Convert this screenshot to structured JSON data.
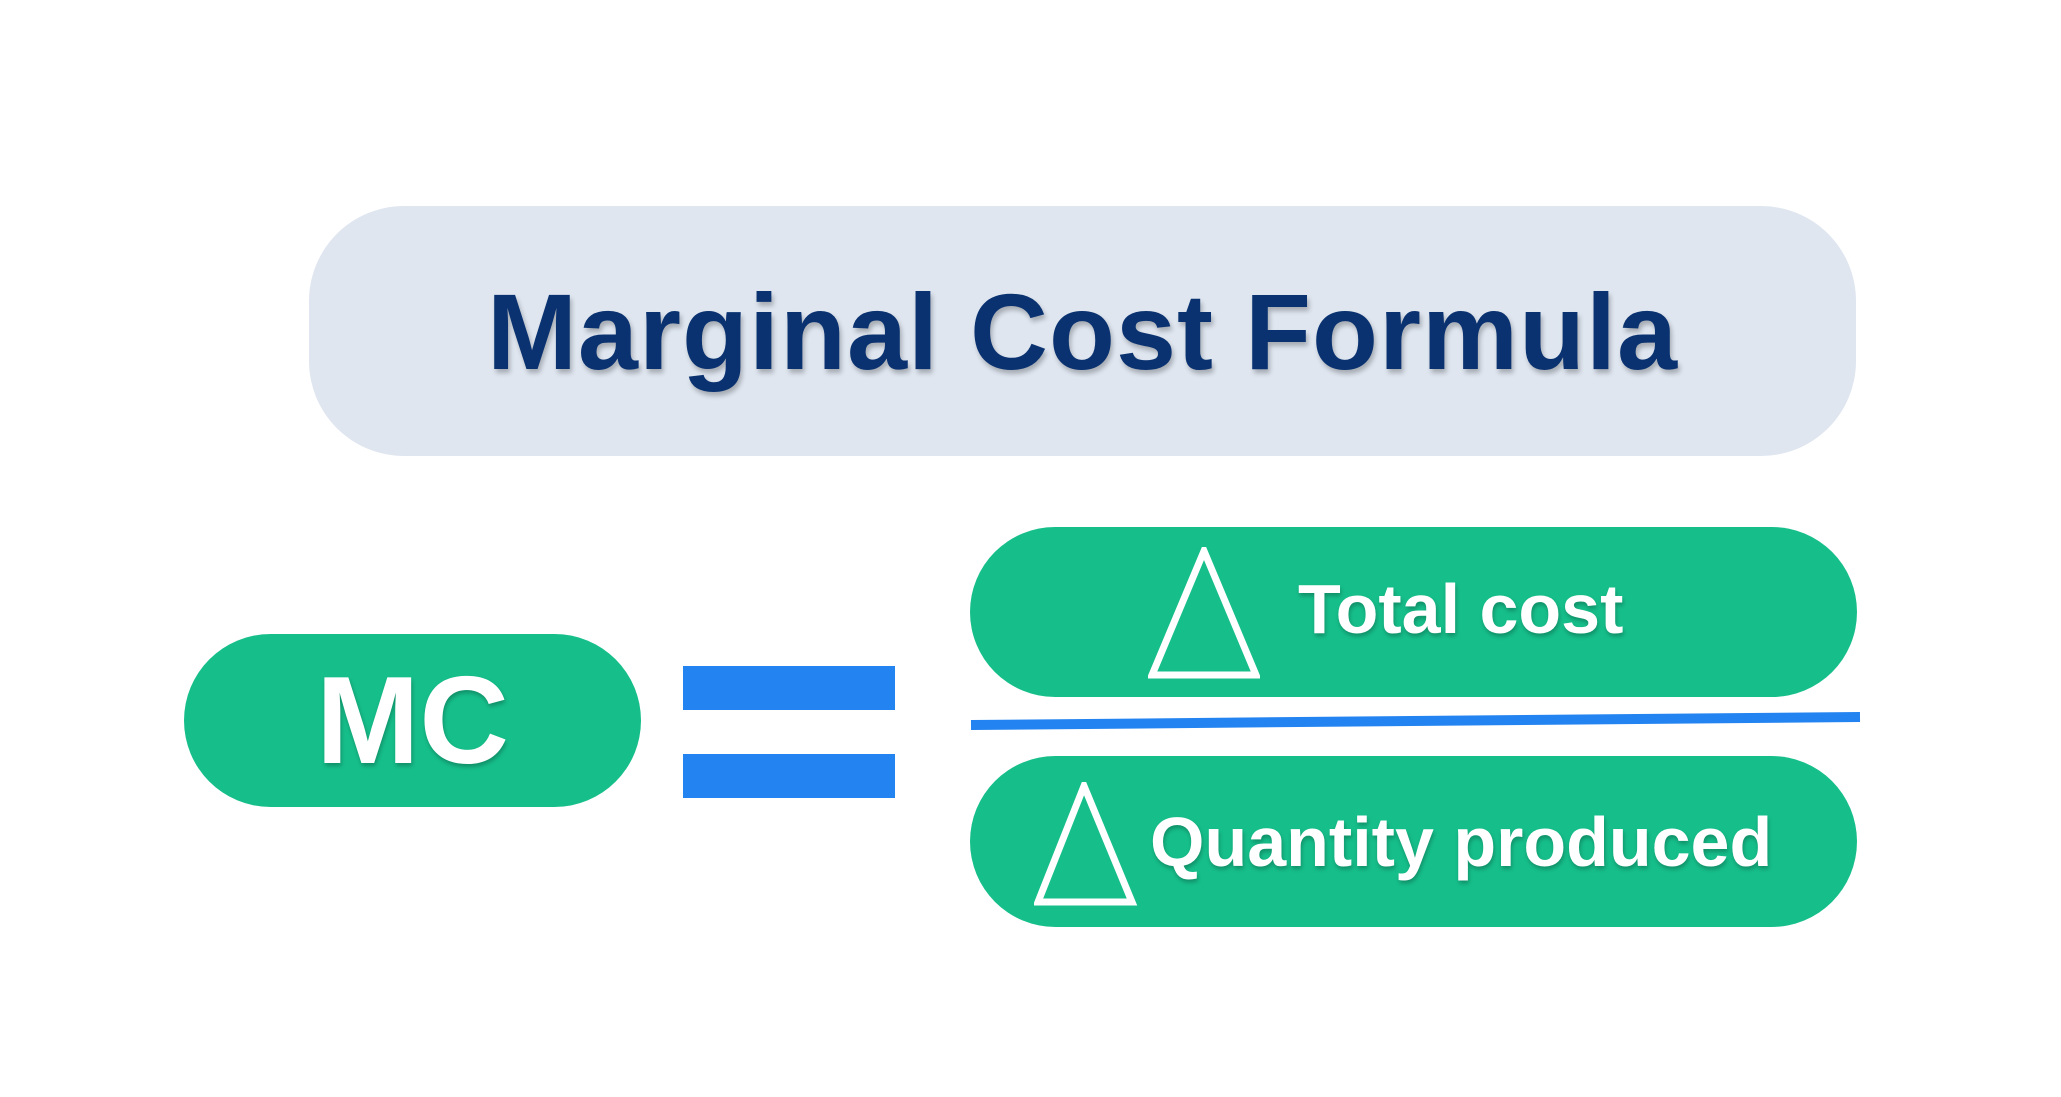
{
  "title": "Marginal Cost Formula",
  "lhs": "MC",
  "numerator": {
    "symbol": "delta-icon",
    "label": "Total cost"
  },
  "denominator": {
    "symbol": "delta-icon",
    "label": "Quantity produced"
  },
  "colors": {
    "title_bg": "#dfe6f0",
    "title_text": "#0a3270",
    "pill": "#16bf8a",
    "operator": "#2383f0"
  }
}
